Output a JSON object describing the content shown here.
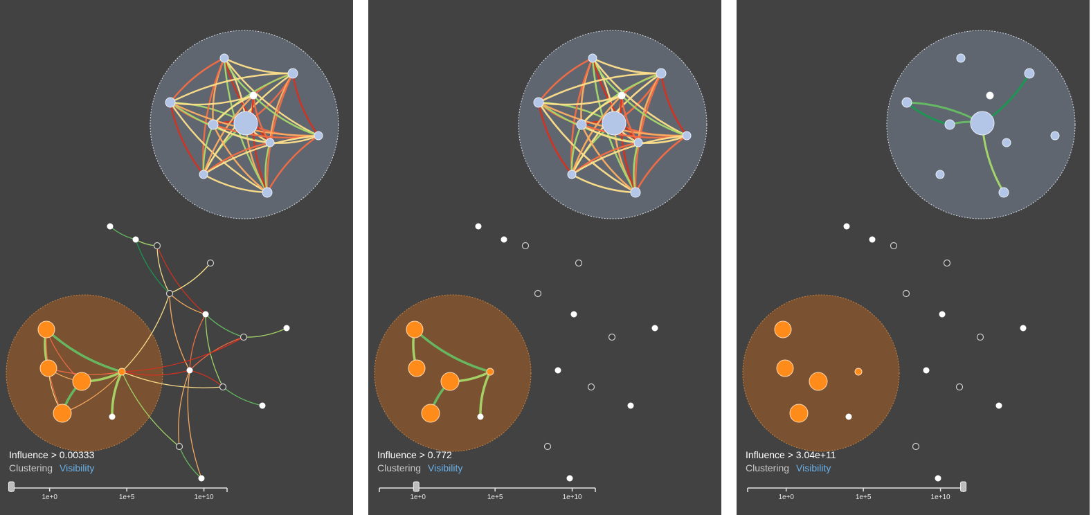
{
  "colors": {
    "panel_bg": "#424242",
    "cluster_blue_fill": "#5f6670",
    "cluster_orange_fill": "#7a5232",
    "node_blue": "#b4c6e7",
    "node_orange": "#ff8c1a",
    "node_white": "#ffffff",
    "node_dark": "#3a3a3a",
    "edge_palette": [
      "#d7301f",
      "#f46d43",
      "#fdae61",
      "#fee08b",
      "#a6d96a",
      "#66bd63",
      "#1a9850"
    ],
    "visibility_link": "#6ab0e8"
  },
  "slider": {
    "ticks": [
      "1e+0",
      "1e+5",
      "1e+10"
    ],
    "tick_exponents": [
      0,
      5,
      10
    ],
    "min_exponent": -2.5,
    "max_exponent": 11.5
  },
  "panels": [
    {
      "influence_label": "Influence > 0.00333",
      "threshold_exponent": -2.48,
      "clustering_label": "Clustering",
      "visibility_label": "Visibility",
      "mode": "all"
    },
    {
      "influence_label": "Influence > 0.772",
      "threshold_exponent": -0.11,
      "clustering_label": "Clustering",
      "visibility_label": "Visibility",
      "mode": "mid"
    },
    {
      "influence_label": "Influence > 3.04e+11",
      "threshold_exponent": 11.48,
      "clustering_label": "Clustering",
      "visibility_label": "Visibility",
      "mode": "high"
    }
  ]
}
